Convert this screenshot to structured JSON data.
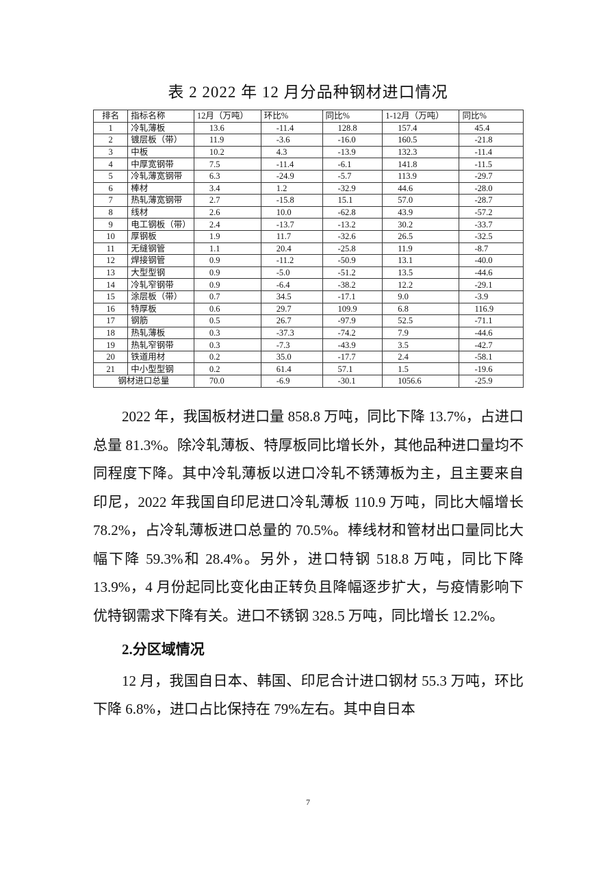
{
  "title": "表 2 2022 年 12 月分品种钢材进口情况",
  "table": {
    "header": [
      "排名",
      "指标名称",
      "12月（万吨）",
      "环比%",
      "同比%",
      "1-12月（万吨）",
      "同比%"
    ],
    "rows": [
      [
        "1",
        "冷轧薄板",
        "13.6",
        "-11.4",
        "128.8",
        "157.4",
        "45.4"
      ],
      [
        "2",
        "镀层板（带）",
        "11.9",
        "-3.6",
        "-16.0",
        "160.5",
        "-21.8"
      ],
      [
        "3",
        "中板",
        "10.2",
        "4.3",
        "-13.9",
        "132.3",
        "-11.4"
      ],
      [
        "4",
        "中厚宽钢带",
        "7.5",
        "-11.4",
        "-6.1",
        "141.8",
        "-11.5"
      ],
      [
        "5",
        "冷轧薄宽钢带",
        "6.3",
        "-24.9",
        "-5.7",
        "113.9",
        "-29.7"
      ],
      [
        "6",
        "棒材",
        "3.4",
        "1.2",
        "-32.9",
        "44.6",
        "-28.0"
      ],
      [
        "7",
        "热轧薄宽钢带",
        "2.7",
        "-15.8",
        "15.1",
        "57.0",
        "-28.7"
      ],
      [
        "8",
        "线材",
        "2.6",
        "10.0",
        "-62.8",
        "43.9",
        "-57.2"
      ],
      [
        "9",
        "电工钢板（带）",
        "2.4",
        "-13.7",
        "-13.2",
        "30.2",
        "-33.7"
      ],
      [
        "10",
        "厚钢板",
        "1.9",
        "11.7",
        "-32.6",
        "26.5",
        "-32.5"
      ],
      [
        "11",
        "无缝钢管",
        "1.1",
        "20.4",
        "-25.8",
        "11.9",
        "-8.7"
      ],
      [
        "12",
        "焊接钢管",
        "0.9",
        "-11.2",
        "-50.9",
        "13.1",
        "-40.0"
      ],
      [
        "13",
        "大型型钢",
        "0.9",
        "-5.0",
        "-51.2",
        "13.5",
        "-44.6"
      ],
      [
        "14",
        "冷轧窄钢带",
        "0.9",
        "-6.4",
        "-38.2",
        "12.2",
        "-29.1"
      ],
      [
        "15",
        "涂层板（带）",
        "0.7",
        "34.5",
        "-17.1",
        "9.0",
        "-3.9"
      ],
      [
        "16",
        "特厚板",
        "0.6",
        "29.7",
        "109.9",
        "6.8",
        "116.9"
      ],
      [
        "17",
        "钢筋",
        "0.5",
        "26.7",
        "-97.9",
        "52.5",
        "-71.1"
      ],
      [
        "18",
        "热轧薄板",
        "0.3",
        "-37.3",
        "-74.2",
        "7.9",
        "-44.6"
      ],
      [
        "19",
        "热轧窄钢带",
        "0.3",
        "-7.3",
        "-43.9",
        "3.5",
        "-42.7"
      ],
      [
        "20",
        "铁道用材",
        "0.2",
        "35.0",
        "-17.7",
        "2.4",
        "-58.1"
      ],
      [
        "21",
        "中小型型钢",
        "0.2",
        "61.4",
        "57.1",
        "1.5",
        "-19.6"
      ]
    ],
    "total": [
      "钢材进口总量",
      "70.0",
      "-6.9",
      "-30.1",
      "1056.6",
      "-25.9"
    ]
  },
  "paragraphs": [
    "2022 年，我国板材进口量 858.8 万吨，同比下降 13.7%，占进口总量 81.3%。除冷轧薄板、特厚板同比增长外，其他品种进口量均不同程度下降。其中冷轧薄板以进口冷轧不锈薄板为主，且主要来自印尼，2022 年我国自印尼进口冷轧薄板 110.9 万吨，同比大幅增长 78.2%，占冷轧薄板进口总量的 70.5%。棒线材和管材出口量同比大幅下降 59.3%和 28.4%。另外，进口特钢 518.8 万吨，同比下降 13.9%，4 月份起同比变化由正转负且降幅逐步扩大，与疫情影响下优特钢需求下降有关。进口不锈钢 328.5 万吨，同比增长 12.2%。"
  ],
  "section_heading": "2.分区域情况",
  "section_paragraph": "12 月，我国自日本、韩国、印尼合计进口钢材 55.3 万吨，环比下降 6.8%，进口占比保持在 79%左右。其中自日本",
  "page_number": "7"
}
